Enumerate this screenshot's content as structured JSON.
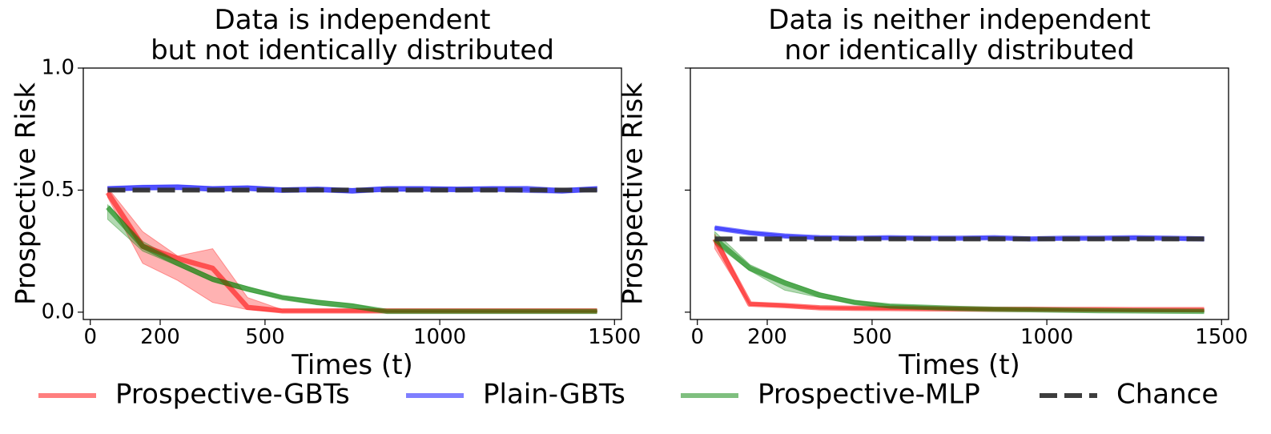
{
  "chart_data": [
    {
      "type": "line",
      "title_lines": [
        "Data is independent",
        "but not identically distributed"
      ],
      "xlabel": "Times (t)",
      "ylabel": "Prospective Risk",
      "xlim": [
        -20,
        1520
      ],
      "ylim": [
        -0.03,
        1.0
      ],
      "xticks": [
        0,
        200,
        500,
        1000,
        1500
      ],
      "yticks": [
        0.0,
        0.5,
        1.0
      ],
      "ytick_labels": [
        "0.0",
        "0.5",
        "1.0"
      ],
      "grid": false,
      "series": [
        {
          "name": "Prospective-GBTs",
          "color": "#ff0000",
          "x": [
            50,
            150,
            250,
            350,
            450,
            550,
            650,
            750,
            850,
            950,
            1050,
            1150,
            1250,
            1350,
            1450
          ],
          "y": [
            0.49,
            0.27,
            0.22,
            0.18,
            0.02,
            0.005,
            0.005,
            0.005,
            0.005,
            0.005,
            0.005,
            0.005,
            0.005,
            0.005,
            0.005
          ],
          "lower": [
            0.47,
            0.2,
            0.13,
            0.04,
            0.01,
            0.0,
            0.0,
            0.0,
            0.0,
            0.0,
            0.0,
            0.0,
            0.0,
            0.0,
            0.0
          ],
          "upper": [
            0.51,
            0.33,
            0.23,
            0.26,
            0.06,
            0.01,
            0.01,
            0.01,
            0.01,
            0.01,
            0.01,
            0.01,
            0.01,
            0.01,
            0.01
          ]
        },
        {
          "name": "Plain-GBTs",
          "color": "#0000ff",
          "x": [
            50,
            150,
            250,
            350,
            450,
            550,
            650,
            750,
            850,
            950,
            1050,
            1150,
            1250,
            1350,
            1450
          ],
          "y": [
            0.505,
            0.51,
            0.512,
            0.505,
            0.508,
            0.5,
            0.503,
            0.497,
            0.505,
            0.505,
            0.503,
            0.505,
            0.503,
            0.497,
            0.505
          ],
          "lower": [
            0.495,
            0.5,
            0.502,
            0.495,
            0.498,
            0.49,
            0.493,
            0.487,
            0.495,
            0.495,
            0.493,
            0.495,
            0.49,
            0.487,
            0.495
          ],
          "upper": [
            0.515,
            0.52,
            0.522,
            0.515,
            0.518,
            0.51,
            0.513,
            0.507,
            0.515,
            0.515,
            0.513,
            0.515,
            0.516,
            0.507,
            0.515
          ]
        },
        {
          "name": "Prospective-MLP",
          "color": "#008000",
          "x": [
            50,
            150,
            250,
            350,
            450,
            550,
            650,
            750,
            850,
            950,
            1050,
            1150,
            1250,
            1350,
            1450
          ],
          "y": [
            0.43,
            0.27,
            0.2,
            0.135,
            0.095,
            0.06,
            0.04,
            0.025,
            0.003,
            0.003,
            0.003,
            0.003,
            0.003,
            0.003,
            0.003
          ],
          "lower": [
            0.38,
            0.25,
            0.19,
            0.125,
            0.085,
            0.055,
            0.03,
            0.015,
            0.0,
            0.0,
            0.0,
            0.0,
            0.0,
            0.0,
            0.0
          ],
          "upper": [
            0.44,
            0.29,
            0.21,
            0.145,
            0.105,
            0.065,
            0.05,
            0.035,
            0.006,
            0.006,
            0.006,
            0.006,
            0.006,
            0.006,
            0.006
          ]
        },
        {
          "name": "Chance",
          "color": "#333333",
          "dashed": true,
          "x": [
            50,
            1450
          ],
          "y": [
            0.5,
            0.5
          ]
        }
      ]
    },
    {
      "type": "line",
      "title_lines": [
        "Data is neither independent",
        "nor identically distributed"
      ],
      "xlabel": "Times (t)",
      "ylabel": "Prospective Risk",
      "xlim": [
        -20,
        1520
      ],
      "ylim": [
        -0.03,
        1.0
      ],
      "xticks": [
        0,
        200,
        500,
        1000,
        1500
      ],
      "yticks": [
        0.0,
        0.5,
        1.0
      ],
      "ytick_labels": [
        "",
        "",
        ""
      ],
      "grid": false,
      "series": [
        {
          "name": "Prospective-GBTs",
          "color": "#ff0000",
          "x": [
            50,
            150,
            250,
            350,
            450,
            550,
            650,
            750,
            850,
            950,
            1050,
            1150,
            1250,
            1350,
            1450
          ],
          "y": [
            0.3,
            0.033,
            0.027,
            0.018,
            0.016,
            0.015,
            0.014,
            0.013,
            0.012,
            0.012,
            0.011,
            0.011,
            0.01,
            0.01,
            0.01
          ],
          "lower": [
            0.26,
            0.028,
            0.022,
            0.014,
            0.012,
            0.011,
            0.01,
            0.009,
            0.008,
            0.008,
            0.007,
            0.007,
            0.006,
            0.006,
            0.006
          ],
          "upper": [
            0.32,
            0.04,
            0.032,
            0.022,
            0.02,
            0.019,
            0.018,
            0.017,
            0.016,
            0.016,
            0.015,
            0.015,
            0.014,
            0.014,
            0.014
          ]
        },
        {
          "name": "Plain-GBTs",
          "color": "#0000ff",
          "x": [
            50,
            150,
            250,
            350,
            450,
            550,
            650,
            750,
            850,
            950,
            1050,
            1150,
            1250,
            1350,
            1450
          ],
          "y": [
            0.345,
            0.325,
            0.312,
            0.305,
            0.303,
            0.305,
            0.303,
            0.303,
            0.305,
            0.3,
            0.303,
            0.303,
            0.305,
            0.303,
            0.3
          ],
          "lower": [
            0.34,
            0.32,
            0.307,
            0.3,
            0.298,
            0.3,
            0.298,
            0.298,
            0.3,
            0.295,
            0.298,
            0.298,
            0.3,
            0.298,
            0.293
          ],
          "upper": [
            0.35,
            0.33,
            0.317,
            0.31,
            0.308,
            0.31,
            0.308,
            0.308,
            0.31,
            0.305,
            0.308,
            0.308,
            0.31,
            0.308,
            0.307
          ]
        },
        {
          "name": "Prospective-MLP",
          "color": "#008000",
          "x": [
            50,
            150,
            250,
            350,
            450,
            550,
            650,
            750,
            850,
            950,
            1050,
            1150,
            1250,
            1350,
            1450
          ],
          "y": [
            0.3,
            0.18,
            0.12,
            0.07,
            0.04,
            0.025,
            0.02,
            0.015,
            0.012,
            0.01,
            0.008,
            0.006,
            0.005,
            0.004,
            0.003
          ],
          "lower": [
            0.28,
            0.17,
            0.09,
            0.06,
            0.033,
            0.02,
            0.015,
            0.011,
            0.008,
            0.007,
            0.005,
            0.003,
            0.002,
            0.001,
            0.0
          ],
          "upper": [
            0.33,
            0.195,
            0.13,
            0.08,
            0.048,
            0.03,
            0.025,
            0.02,
            0.016,
            0.013,
            0.011,
            0.009,
            0.008,
            0.007,
            0.006
          ]
        },
        {
          "name": "Chance",
          "color": "#333333",
          "dashed": true,
          "x": [
            50,
            1450
          ],
          "y": [
            0.3,
            0.3
          ]
        }
      ]
    }
  ],
  "legend": {
    "placement": "bottom",
    "items": [
      {
        "label": "Prospective-GBTs",
        "color": "#ff0000",
        "dashed": false
      },
      {
        "label": "Plain-GBTs",
        "color": "#0000ff",
        "dashed": false
      },
      {
        "label": "Prospective-MLP",
        "color": "#008000",
        "dashed": false
      },
      {
        "label": "Chance",
        "color": "#333333",
        "dashed": true
      }
    ]
  }
}
